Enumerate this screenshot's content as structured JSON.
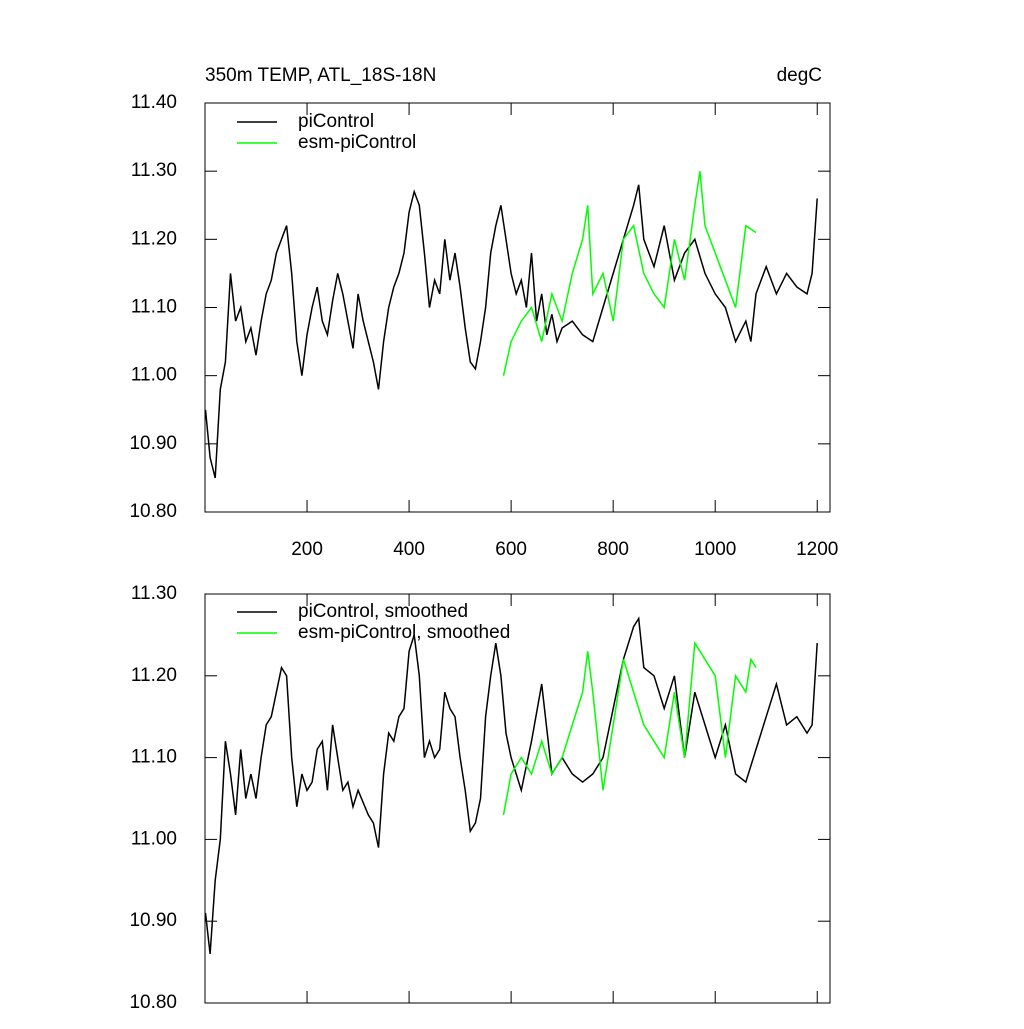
{
  "chart_data": [
    {
      "type": "line",
      "title": "350m TEMP, ATL_18S-18N",
      "units": "degC",
      "xlim": [
        0,
        1225
      ],
      "xticks": [
        200,
        400,
        600,
        800,
        1000,
        1200
      ],
      "ylim": [
        10.8,
        11.4
      ],
      "yticks": [
        {
          "value": 10.8,
          "label": "10.80"
        },
        {
          "value": 10.9,
          "label": "10.90"
        },
        {
          "value": 11.0,
          "label": "11.00"
        },
        {
          "value": 11.1,
          "label": "11.10"
        },
        {
          "value": 11.2,
          "label": "11.20"
        },
        {
          "value": 11.3,
          "label": "11.30"
        },
        {
          "value": 11.4,
          "label": "11.40"
        }
      ],
      "series": [
        {
          "name": "piControl",
          "color": "#000000",
          "x": [
            1,
            10,
            20,
            30,
            40,
            50,
            60,
            70,
            80,
            90,
            100,
            110,
            120,
            130,
            140,
            150,
            160,
            170,
            180,
            190,
            200,
            210,
            220,
            230,
            240,
            250,
            260,
            270,
            280,
            290,
            300,
            310,
            320,
            330,
            340,
            350,
            360,
            370,
            380,
            390,
            400,
            410,
            420,
            430,
            440,
            450,
            460,
            470,
            480,
            490,
            500,
            510,
            520,
            530,
            540,
            550,
            560,
            570,
            580,
            590,
            600,
            610,
            620,
            630,
            640,
            650,
            660,
            670,
            680,
            690,
            700,
            720,
            740,
            760,
            780,
            800,
            820,
            840,
            850,
            860,
            880,
            900,
            920,
            940,
            960,
            980,
            1000,
            1020,
            1040,
            1060,
            1070,
            1080,
            1100,
            1120,
            1140,
            1160,
            1180,
            1190,
            1200
          ],
          "values": [
            10.95,
            10.88,
            10.85,
            10.98,
            11.02,
            11.15,
            11.08,
            11.1,
            11.05,
            11.07,
            11.03,
            11.08,
            11.12,
            11.14,
            11.18,
            11.2,
            11.22,
            11.15,
            11.05,
            11.0,
            11.06,
            11.1,
            11.13,
            11.08,
            11.06,
            11.11,
            11.15,
            11.12,
            11.08,
            11.04,
            11.12,
            11.08,
            11.05,
            11.02,
            10.98,
            11.05,
            11.1,
            11.13,
            11.15,
            11.18,
            11.24,
            11.27,
            11.25,
            11.18,
            11.1,
            11.14,
            11.12,
            11.2,
            11.14,
            11.18,
            11.13,
            11.07,
            11.02,
            11.01,
            11.05,
            11.1,
            11.18,
            11.22,
            11.25,
            11.2,
            11.15,
            11.12,
            11.14,
            11.1,
            11.18,
            11.08,
            11.12,
            11.06,
            11.09,
            11.05,
            11.07,
            11.08,
            11.06,
            11.05,
            11.1,
            11.15,
            11.2,
            11.25,
            11.28,
            11.2,
            11.16,
            11.22,
            11.14,
            11.18,
            11.2,
            11.15,
            11.12,
            11.1,
            11.05,
            11.08,
            11.05,
            11.12,
            11.16,
            11.12,
            11.15,
            11.13,
            11.12,
            11.15,
            11.26
          ]
        },
        {
          "name": "esm-piControl",
          "color": "#00ff00",
          "x": [
            585,
            600,
            620,
            640,
            660,
            680,
            700,
            720,
            740,
            750,
            760,
            780,
            800,
            820,
            840,
            860,
            880,
            900,
            920,
            940,
            960,
            970,
            980,
            1000,
            1020,
            1040,
            1060,
            1080
          ],
          "values": [
            11.0,
            11.05,
            11.08,
            11.1,
            11.05,
            11.12,
            11.08,
            11.15,
            11.2,
            11.25,
            11.12,
            11.15,
            11.08,
            11.2,
            11.22,
            11.15,
            11.12,
            11.1,
            11.2,
            11.14,
            11.25,
            11.3,
            11.22,
            11.18,
            11.14,
            11.1,
            11.22,
            11.21
          ]
        }
      ]
    },
    {
      "type": "line",
      "xlim": [
        0,
        1225
      ],
      "xticks": [
        200,
        400,
        600,
        800,
        1000,
        1200
      ],
      "ylim": [
        10.8,
        11.3
      ],
      "yticks": [
        {
          "value": 10.8,
          "label": "10.80"
        },
        {
          "value": 10.9,
          "label": "10.90"
        },
        {
          "value": 11.0,
          "label": "11.00"
        },
        {
          "value": 11.1,
          "label": "11.10"
        },
        {
          "value": 11.2,
          "label": "11.20"
        },
        {
          "value": 11.3,
          "label": "11.30"
        }
      ],
      "series": [
        {
          "name": "piControl, smoothed",
          "color": "#000000",
          "x": [
            1,
            10,
            20,
            30,
            40,
            50,
            60,
            70,
            80,
            90,
            100,
            110,
            120,
            130,
            140,
            150,
            160,
            170,
            180,
            190,
            200,
            210,
            220,
            230,
            240,
            250,
            260,
            270,
            280,
            290,
            300,
            320,
            330,
            340,
            350,
            360,
            370,
            380,
            390,
            400,
            410,
            420,
            430,
            440,
            450,
            460,
            470,
            480,
            490,
            500,
            510,
            520,
            530,
            540,
            550,
            560,
            570,
            580,
            590,
            600,
            620,
            640,
            660,
            680,
            700,
            720,
            740,
            760,
            780,
            800,
            820,
            840,
            850,
            860,
            880,
            900,
            920,
            940,
            960,
            980,
            1000,
            1020,
            1040,
            1060,
            1080,
            1100,
            1120,
            1140,
            1160,
            1180,
            1190,
            1200
          ],
          "values": [
            10.91,
            10.86,
            10.95,
            11.0,
            11.12,
            11.08,
            11.03,
            11.11,
            11.05,
            11.08,
            11.05,
            11.1,
            11.14,
            11.15,
            11.18,
            11.21,
            11.2,
            11.1,
            11.04,
            11.08,
            11.06,
            11.07,
            11.11,
            11.12,
            11.06,
            11.14,
            11.1,
            11.06,
            11.07,
            11.04,
            11.06,
            11.03,
            11.02,
            10.99,
            11.08,
            11.13,
            11.12,
            11.15,
            11.16,
            11.23,
            11.25,
            11.2,
            11.1,
            11.12,
            11.1,
            11.11,
            11.18,
            11.16,
            11.15,
            11.1,
            11.06,
            11.01,
            11.02,
            11.05,
            11.15,
            11.2,
            11.24,
            11.2,
            11.13,
            11.1,
            11.06,
            11.12,
            11.19,
            11.08,
            11.1,
            11.08,
            11.07,
            11.08,
            11.1,
            11.16,
            11.22,
            11.26,
            11.27,
            11.21,
            11.2,
            11.16,
            11.2,
            11.1,
            11.18,
            11.14,
            11.1,
            11.14,
            11.08,
            11.07,
            11.11,
            11.15,
            11.19,
            11.14,
            11.15,
            11.13,
            11.14,
            11.24
          ]
        },
        {
          "name": "esm-piControl, smoothed",
          "color": "#00ff00",
          "x": [
            585,
            600,
            620,
            640,
            660,
            680,
            700,
            720,
            740,
            750,
            760,
            780,
            800,
            820,
            840,
            860,
            880,
            900,
            920,
            940,
            960,
            980,
            1000,
            1020,
            1040,
            1060,
            1070,
            1080
          ],
          "values": [
            11.03,
            11.08,
            11.1,
            11.08,
            11.12,
            11.08,
            11.1,
            11.14,
            11.18,
            11.23,
            11.18,
            11.06,
            11.14,
            11.22,
            11.18,
            11.14,
            11.12,
            11.1,
            11.18,
            11.1,
            11.24,
            11.22,
            11.2,
            11.1,
            11.2,
            11.18,
            11.22,
            11.21
          ]
        }
      ]
    }
  ]
}
